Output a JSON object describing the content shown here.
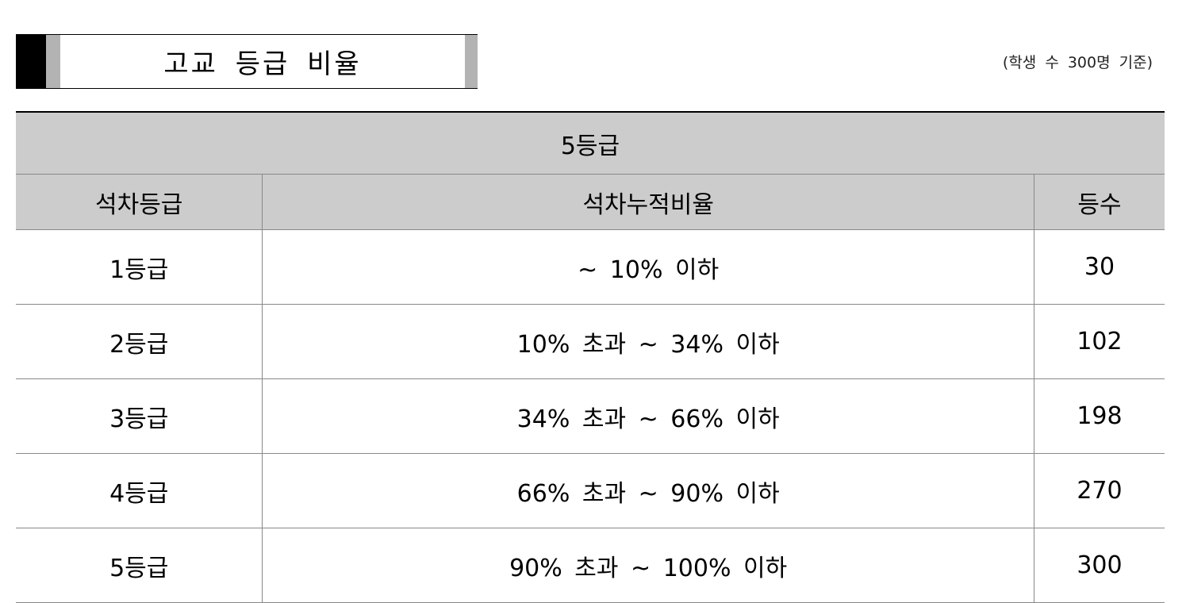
{
  "title": "고교 등급 비율",
  "note": "(학생 수 300명 기준)",
  "table": {
    "group_header": "5등급",
    "columns": [
      "석차등급",
      "석차누적비율",
      "등수"
    ],
    "rows": [
      [
        "1등급",
        "~ 10% 이하",
        "30"
      ],
      [
        "2등급",
        "10% 초과 ~ 34% 이하",
        "102"
      ],
      [
        "3등급",
        "34% 초과 ~ 66% 이하",
        "198"
      ],
      [
        "4등급",
        "66% 초과 ~ 90% 이하",
        "270"
      ],
      [
        "5등급",
        "90% 초과 ~ 100% 이하",
        "300"
      ]
    ]
  }
}
